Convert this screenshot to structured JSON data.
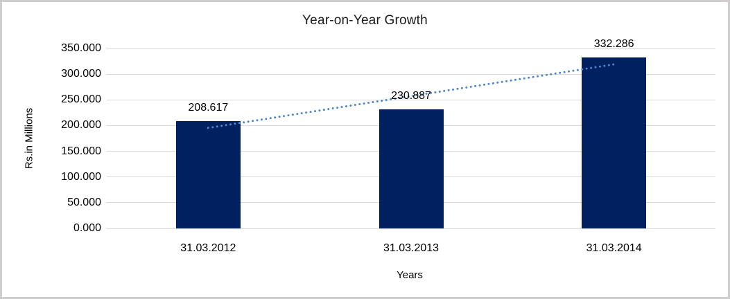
{
  "chart_data": {
    "type": "bar",
    "title": "Year-on-Year Growth",
    "xlabel": "Years",
    "ylabel": "Rs.in Millions",
    "categories": [
      "31.03.2012",
      "31.03.2013",
      "31.03.2014"
    ],
    "values": [
      208.617,
      230.887,
      332.286
    ],
    "data_labels": [
      "208.617",
      "230.887",
      "332.286"
    ],
    "ylim": [
      0,
      350
    ],
    "ytick_step": 50,
    "yticks": [
      0,
      50,
      100,
      150,
      200,
      250,
      300,
      350
    ],
    "ytick_labels": [
      "0.000",
      "50.000",
      "100.000",
      "150.000",
      "200.000",
      "250.000",
      "300.000",
      "350.000"
    ],
    "grid": true,
    "legend": "none",
    "trendline": {
      "type": "linear",
      "style": "dotted"
    },
    "colors": {
      "bar": "#002060",
      "trendline": "#4e87c9",
      "gridline": "#d9d9d9",
      "text": "#000000",
      "frame_border": "#cfcdcd",
      "background": "#ffffff"
    }
  }
}
